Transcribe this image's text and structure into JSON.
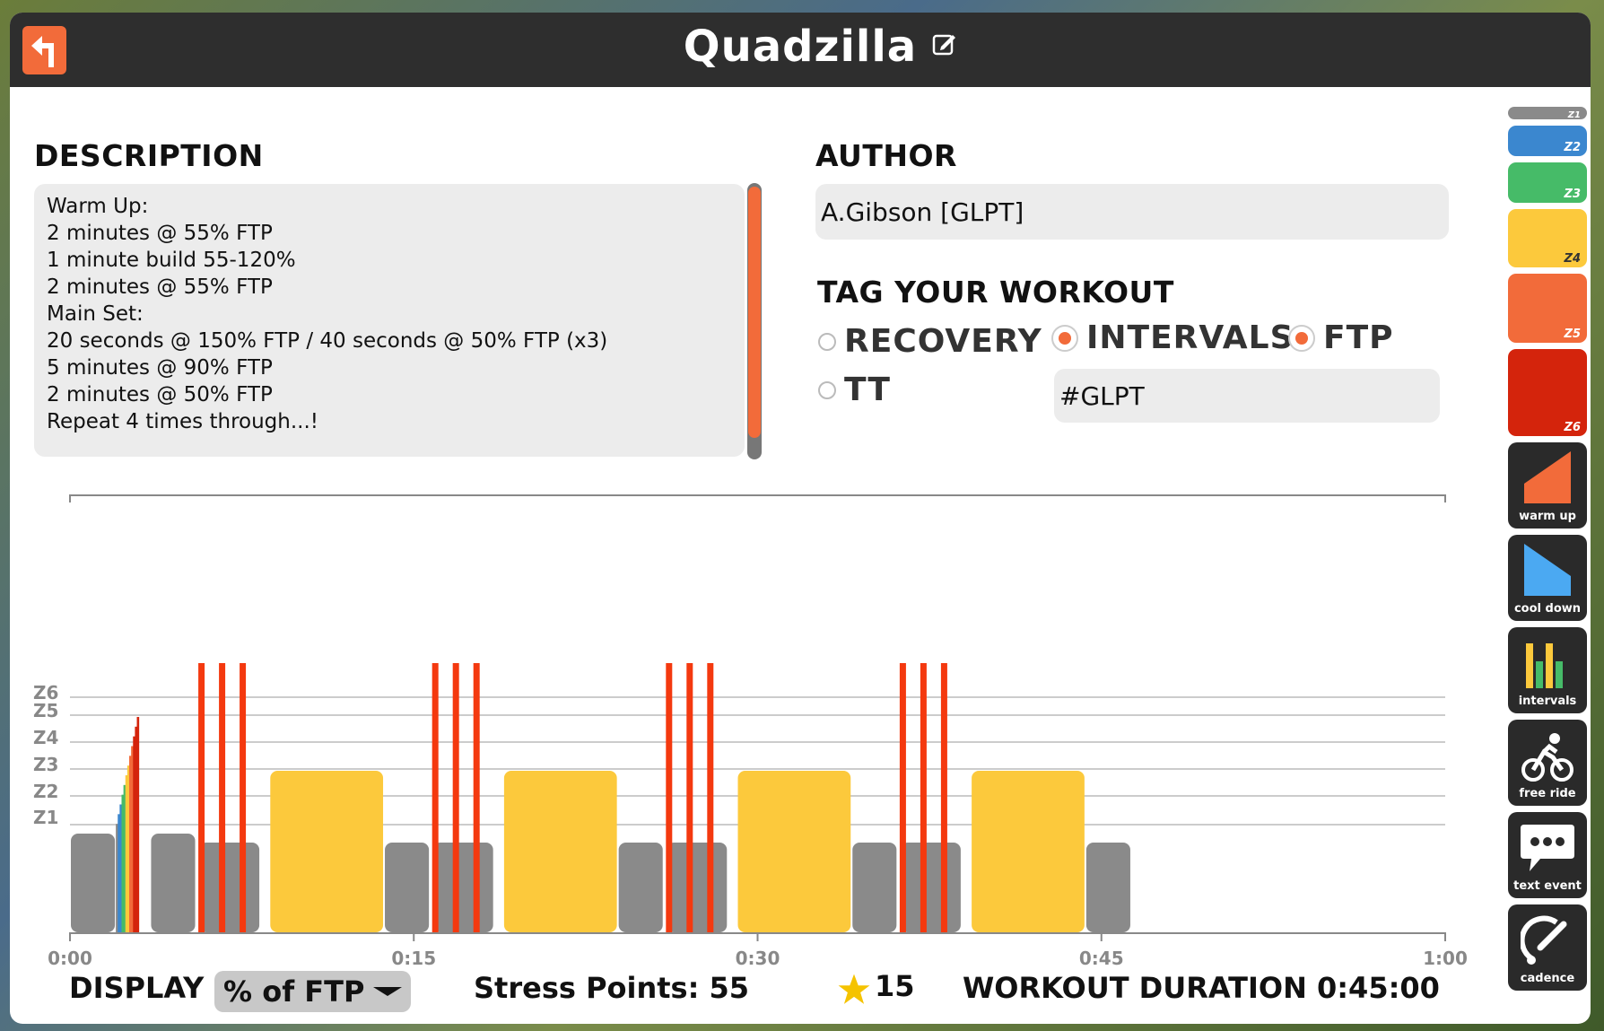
{
  "window": {
    "title": "Quadzilla"
  },
  "description": {
    "heading": "DESCRIPTION",
    "lines": [
      "Warm Up:",
      "2 minutes @ 55% FTP",
      "1 minute build 55-120%",
      "2 minutes @ 55% FTP",
      "Main Set:",
      "20 seconds @ 150% FTP / 40 seconds @ 50% FTP (x3)",
      "5 minutes @ 90% FTP",
      "2 minutes @ 50% FTP",
      "Repeat 4 times through...!"
    ]
  },
  "author": {
    "heading": "AUTHOR",
    "value": "A.Gibson [GLPT]"
  },
  "tags": {
    "heading": "TAG YOUR WORKOUT",
    "items": [
      {
        "label": "RECOVERY",
        "selected": false
      },
      {
        "label": "INTERVALS",
        "selected": true
      },
      {
        "label": "FTP",
        "selected": true
      },
      {
        "label": "TT",
        "selected": false
      }
    ],
    "custom_tag": "#GLPT"
  },
  "chart_data": {
    "type": "bar",
    "x_ticks": [
      "0:00",
      "0:15",
      "0:30",
      "0:45",
      "1:00"
    ],
    "y_zone_labels": [
      "Z1",
      "Z2",
      "Z3",
      "Z4",
      "Z5",
      "Z6"
    ],
    "segments": [
      {
        "start": 0.0,
        "dur": 2.0,
        "power": 55
      },
      {
        "start": 2.0,
        "dur": 1.0,
        "power_from": 55,
        "power_to": 120,
        "ramp": true
      },
      {
        "start": 3.5,
        "dur": 2.0,
        "power": 55
      },
      {
        "start": 5.6,
        "dur": 2.7,
        "power": 50
      },
      {
        "start": 8.7,
        "dur": 5.0,
        "power": 90
      },
      {
        "start": 13.7,
        "dur": 2.0,
        "power": 50
      },
      {
        "start": 15.8,
        "dur": 2.7,
        "power": 50
      },
      {
        "start": 18.9,
        "dur": 5.0,
        "power": 90
      },
      {
        "start": 23.9,
        "dur": 2.0,
        "power": 50
      },
      {
        "start": 26.0,
        "dur": 2.7,
        "power": 50
      },
      {
        "start": 29.1,
        "dur": 5.0,
        "power": 90
      },
      {
        "start": 34.1,
        "dur": 2.0,
        "power": 50
      },
      {
        "start": 36.2,
        "dur": 2.7,
        "power": 50
      },
      {
        "start": 39.3,
        "dur": 5.0,
        "power": 90
      },
      {
        "start": 44.3,
        "dur": 2.0,
        "power": 50
      }
    ],
    "sprint_groups": [
      5.6,
      15.8,
      26.0,
      36.2
    ],
    "sprint_power": 150,
    "xlim_minutes": [
      0,
      60
    ]
  },
  "footer": {
    "display_label": "DISPLAY",
    "display_value": "% of FTP",
    "stress_points": "Stress Points: 55",
    "stars": "15",
    "duration": "WORKOUT DURATION 0:45:00"
  },
  "palette": {
    "zones": [
      {
        "label": "Z1",
        "color": "#8a8a8a"
      },
      {
        "label": "Z2",
        "color": "#3b87cf"
      },
      {
        "label": "Z3",
        "color": "#46bb68"
      },
      {
        "label": "Z4",
        "color": "#fcc93c"
      },
      {
        "label": "Z5",
        "color": "#f26b3a"
      },
      {
        "label": "Z6",
        "color": "#d4240c"
      }
    ],
    "tools": [
      {
        "label": "warm up",
        "icon": "warm-up-icon"
      },
      {
        "label": "cool down",
        "icon": "cool-down-icon"
      },
      {
        "label": "intervals",
        "icon": "intervals-icon"
      },
      {
        "label": "free ride",
        "icon": "cyclist-icon"
      },
      {
        "label": "text event",
        "icon": "speech-bubble-icon"
      },
      {
        "label": "cadence",
        "icon": "cadence-icon"
      }
    ]
  }
}
